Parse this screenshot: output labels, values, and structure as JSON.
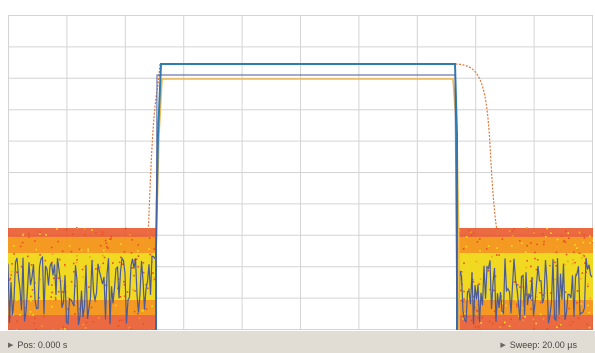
{
  "colors": {
    "background": "#ffffff",
    "grid": "#d4d4d4",
    "status_bar": "#e2ddd4",
    "trace_max_hold": "#e0783a",
    "trace_min_hold": "#f0b84a",
    "trace_average": "#2f7db0",
    "trace_live": "#4a5a9a",
    "persistence_low": "#f0e020",
    "persistence_mid": "#f5a020",
    "persistence_high": "#e85020"
  },
  "status": {
    "position_label": "Pos: 0.000 s",
    "sweep_label": "Sweep: 20.00 µs",
    "marker_icon": "triangle-right-icon"
  },
  "display": {
    "type": "spectrum-persistence",
    "grid": true,
    "grid_divisions": {
      "x": 10,
      "y": 10
    }
  }
}
